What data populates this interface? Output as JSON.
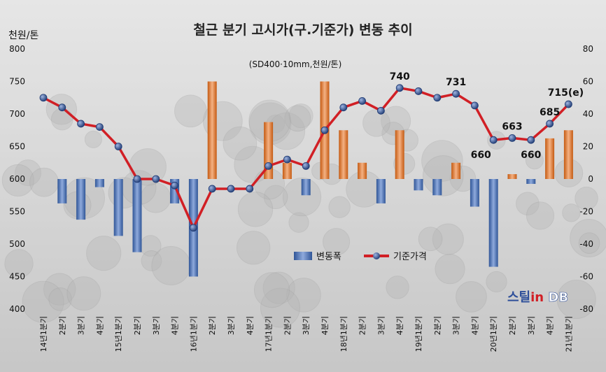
{
  "chart_data": {
    "type": "bar+line",
    "title": "철근 분기 고시가(구.기준가) 변동 추이",
    "subtitle": "(SD400·10mm,천원/톤)",
    "ylabel": "천원/톤",
    "ylim_left": [
      400,
      800
    ],
    "yticks_left": [
      400,
      450,
      500,
      550,
      600,
      650,
      700,
      750,
      800
    ],
    "ylim_right": [
      -80,
      80
    ],
    "yticks_right": [
      -80,
      -60,
      -40,
      -20,
      0,
      20,
      40,
      60,
      80
    ],
    "categories": [
      "14년1분기",
      "2분기",
      "3분기",
      "4분기",
      "15년1분기",
      "2분기",
      "3분기",
      "4분기",
      "16년1분기",
      "2분기",
      "3분기",
      "4분기",
      "17년1분기",
      "2분기",
      "3분기",
      "4분기",
      "18년1분기",
      "2분기",
      "3분기",
      "4분기",
      "19년1분기",
      "2분기",
      "3분기",
      "4분기",
      "20년1분기",
      "2분기",
      "3분기",
      "4분기",
      "21년1분기"
    ],
    "series": [
      {
        "name": "변동폭",
        "axis": "right",
        "type": "bar",
        "color": "#ed7d31",
        "neg_color": "#4472c4",
        "values": [
          0,
          -15,
          -25,
          -5,
          -35,
          -45,
          0,
          -15,
          -60,
          60,
          0,
          0,
          35,
          10,
          -10,
          60,
          30,
          10,
          -15,
          30,
          -7,
          -10,
          10,
          -17,
          -54,
          3,
          -3,
          25,
          30
        ]
      },
      {
        "name": "기준가격",
        "axis": "left",
        "type": "line",
        "color": "#d11f25",
        "marker": "#2f4a86",
        "values": [
          725,
          710,
          685,
          680,
          650,
          600,
          600,
          590,
          525,
          585,
          585,
          585,
          620,
          630,
          620,
          675,
          710,
          720,
          705,
          740,
          735,
          725,
          731,
          713,
          660,
          663,
          660,
          685,
          715
        ]
      }
    ],
    "annotations": [
      {
        "index": 19,
        "text": "740"
      },
      {
        "index": 22,
        "text": "731"
      },
      {
        "index": 24,
        "text": "660"
      },
      {
        "index": 25,
        "text": "663"
      },
      {
        "index": 26,
        "text": "660"
      },
      {
        "index": 27,
        "text": "685"
      },
      {
        "index": 28,
        "text": "715(e)"
      }
    ],
    "legend_position": "bottom-center",
    "grid": false,
    "watermark": "스틸in DB"
  }
}
